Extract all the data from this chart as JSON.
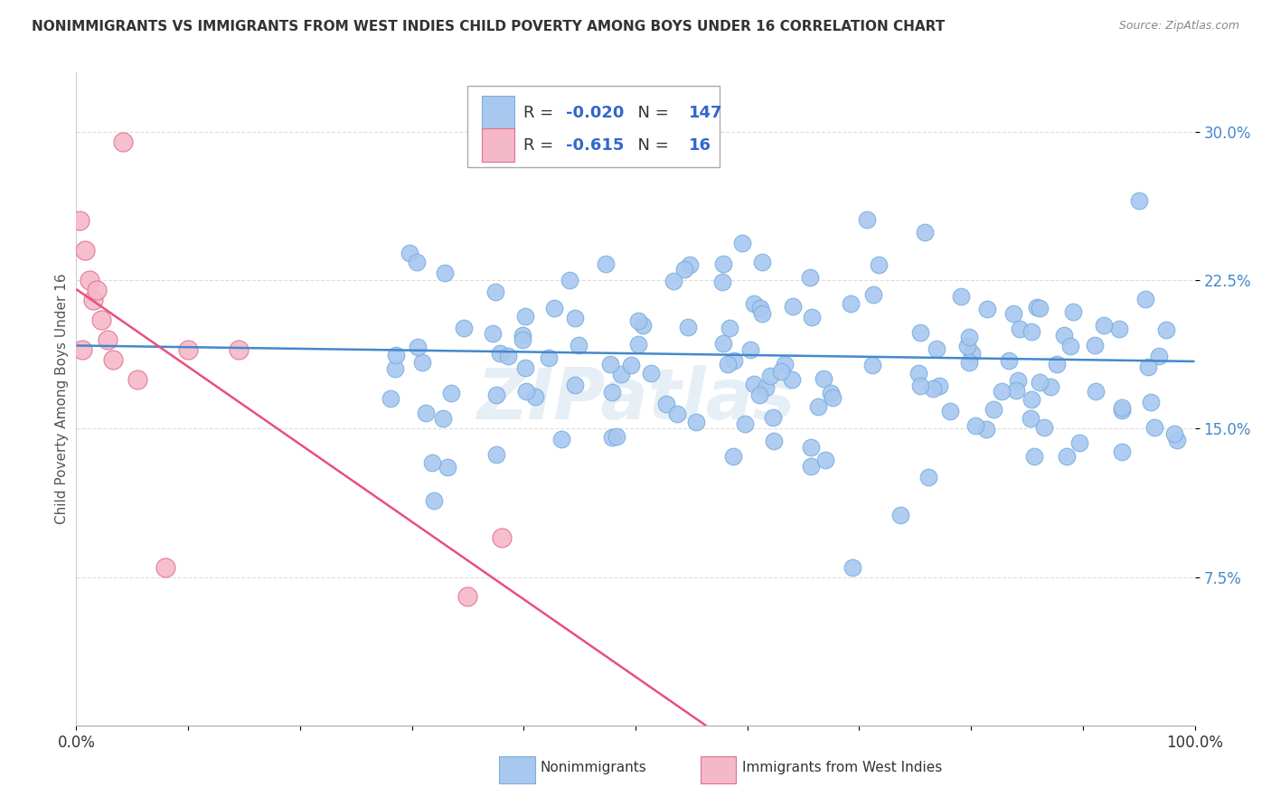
{
  "title": "NONIMMIGRANTS VS IMMIGRANTS FROM WEST INDIES CHILD POVERTY AMONG BOYS UNDER 16 CORRELATION CHART",
  "source": "Source: ZipAtlas.com",
  "ylabel": "Child Poverty Among Boys Under 16",
  "xlim": [
    0,
    100
  ],
  "ylim": [
    0,
    33
  ],
  "yticks": [
    7.5,
    15.0,
    22.5,
    30.0
  ],
  "ytick_labels": [
    "7.5%",
    "15.0%",
    "22.5%",
    "30.0%"
  ],
  "legend_R1": "-0.020",
  "legend_N1": "147",
  "legend_R2": "-0.615",
  "legend_N2": "16",
  "nonimm_color": "#a8c8f0",
  "nonimm_edge": "#7aaee0",
  "imm_color": "#f5b8c8",
  "imm_edge": "#e07090",
  "line_blue": "#4488cc",
  "line_pink": "#e8507a",
  "label1": "Nonimmigrants",
  "label2": "Immigrants from West Indies",
  "watermark": "ZIPatlas",
  "background_color": "#ffffff",
  "grid_color": "#dddddd",
  "blue_intercept": 19.0,
  "blue_slope": -0.012,
  "pink_intercept": 19.5,
  "pink_slope": -0.52
}
